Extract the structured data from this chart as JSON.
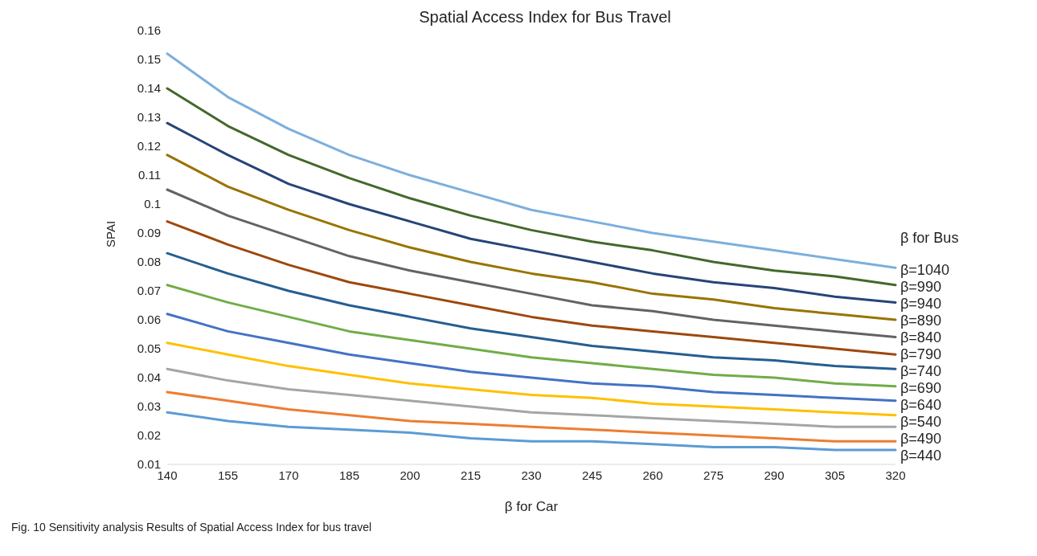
{
  "chart_data": {
    "type": "line",
    "title": "Spatial Access Index for Bus Travel",
    "xlabel": "β for Car",
    "ylabel": "SPAI",
    "legend_title": "β for Bus",
    "categories": [
      "140",
      "155",
      "170",
      "185",
      "200",
      "215",
      "230",
      "245",
      "260",
      "275",
      "290",
      "305",
      "320"
    ],
    "series": [
      {
        "name": "β=440",
        "color": "#5b9bd5",
        "values": [
          0.028,
          0.025,
          0.023,
          0.022,
          0.021,
          0.019,
          0.018,
          0.018,
          0.017,
          0.016,
          0.016,
          0.015,
          0.015
        ]
      },
      {
        "name": "β=490",
        "color": "#ed7d31",
        "values": [
          0.035,
          0.032,
          0.029,
          0.027,
          0.025,
          0.024,
          0.023,
          0.022,
          0.021,
          0.02,
          0.019,
          0.018,
          0.018
        ]
      },
      {
        "name": "β=540",
        "color": "#a5a5a5",
        "values": [
          0.043,
          0.039,
          0.036,
          0.034,
          0.032,
          0.03,
          0.028,
          0.027,
          0.026,
          0.025,
          0.024,
          0.023,
          0.023
        ]
      },
      {
        "color": "#ffc000",
        "values": [
          0.052,
          0.048,
          0.044,
          0.041,
          0.038,
          0.036,
          0.034,
          0.033,
          0.031,
          0.03,
          0.029,
          0.028,
          0.027
        ]
      },
      {
        "name": "β=640",
        "color": "#4472c4",
        "values": [
          0.062,
          0.056,
          0.052,
          0.048,
          0.045,
          0.042,
          0.04,
          0.038,
          0.037,
          0.035,
          0.034,
          0.033,
          0.032
        ]
      },
      {
        "name": "β=690",
        "color": "#70ad47",
        "values": [
          0.072,
          0.066,
          0.061,
          0.056,
          0.053,
          0.05,
          0.047,
          0.045,
          0.043,
          0.041,
          0.04,
          0.038,
          0.037
        ]
      },
      {
        "name": "β=740",
        "color": "#255e91",
        "values": [
          0.083,
          0.076,
          0.07,
          0.065,
          0.061,
          0.057,
          0.054,
          0.051,
          0.049,
          0.047,
          0.046,
          0.044,
          0.043
        ]
      },
      {
        "name": "β=790",
        "color": "#9e480e",
        "values": [
          0.094,
          0.086,
          0.079,
          0.073,
          0.069,
          0.065,
          0.061,
          0.058,
          0.056,
          0.054,
          0.052,
          0.05,
          0.048
        ]
      },
      {
        "name": "β=840",
        "color": "#636363",
        "values": [
          0.105,
          0.096,
          0.089,
          0.082,
          0.077,
          0.073,
          0.069,
          0.065,
          0.063,
          0.06,
          0.058,
          0.056,
          0.054
        ]
      },
      {
        "name": "β=890",
        "color": "#997300",
        "values": [
          0.117,
          0.106,
          0.098,
          0.091,
          0.085,
          0.08,
          0.076,
          0.073,
          0.069,
          0.067,
          0.064,
          0.062,
          0.06
        ]
      },
      {
        "name": "β=940",
        "color": "#264478",
        "values": [
          0.128,
          0.117,
          0.107,
          0.1,
          0.094,
          0.088,
          0.084,
          0.08,
          0.076,
          0.073,
          0.071,
          0.068,
          0.066
        ]
      },
      {
        "name": "β=990",
        "color": "#43682b",
        "values": [
          0.14,
          0.127,
          0.117,
          0.109,
          0.102,
          0.096,
          0.091,
          0.087,
          0.084,
          0.08,
          0.077,
          0.075,
          0.072
        ]
      },
      {
        "name": "β=1040",
        "color": "#7cafdd",
        "values": [
          0.152,
          0.137,
          0.126,
          0.117,
          0.11,
          0.104,
          0.098,
          0.094,
          0.09,
          0.087,
          0.084,
          0.081,
          0.078
        ]
      }
    ],
    "ylim": [
      0.01,
      0.16
    ],
    "yticks": [
      0.01,
      0.02,
      0.03,
      0.04,
      0.05,
      0.06,
      0.07,
      0.08,
      0.09,
      0.1,
      0.11,
      0.12,
      0.13,
      0.14,
      0.15,
      0.16
    ],
    "grid": false,
    "legend": false,
    "marker": "none",
    "line_style": "solid",
    "annotations": [
      "Fig. 10 Sensitivity analysis Results of Spatial Access Index for bus travel"
    ]
  }
}
